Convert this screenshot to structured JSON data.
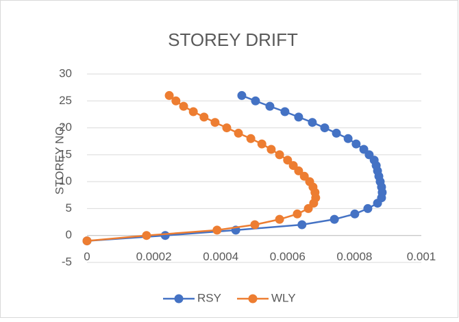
{
  "chart_data": {
    "type": "scatter",
    "title": "STOREY DRIFT",
    "ylabel": "STOREY NO.",
    "xlim": [
      0,
      0.001
    ],
    "xticks": [
      0,
      0.0002,
      0.0004,
      0.0006,
      0.0008,
      0.001
    ],
    "ylim": [
      -5,
      30
    ],
    "yticks": [
      -5,
      0,
      5,
      10,
      15,
      20,
      25,
      30
    ],
    "grid": true,
    "legend": "bottom",
    "series": [
      {
        "name": "RSY",
        "color": "#4472c4",
        "x": [
          0,
          0.000234,
          0.000445,
          0.000643,
          0.00074,
          0.000801,
          0.00084,
          0.000869,
          0.000881,
          0.000883,
          0.000881,
          0.000877,
          0.000873,
          0.000869,
          0.000865,
          0.000859,
          0.000844,
          0.000828,
          0.000805,
          0.000781,
          0.000746,
          0.000711,
          0.000674,
          0.000633,
          0.000592,
          0.000547,
          0.000504,
          0.000463
        ],
        "values": [
          -1,
          0,
          1,
          2,
          3,
          4,
          5,
          6,
          7,
          8,
          9,
          10,
          11,
          12,
          13,
          14,
          15,
          16,
          17,
          18,
          19,
          20,
          21,
          22,
          23,
          24,
          25,
          26
        ]
      },
      {
        "name": "WLY",
        "color": "#ed7d31",
        "x": [
          0,
          0.000178,
          0.000389,
          0.000502,
          0.000576,
          0.000629,
          0.000662,
          0.000678,
          0.000684,
          0.000682,
          0.000676,
          0.000666,
          0.00065,
          0.000633,
          0.000617,
          0.0006,
          0.000576,
          0.000551,
          0.000523,
          0.00049,
          0.000453,
          0.000418,
          0.000383,
          0.00035,
          0.000318,
          0.000289,
          0.000266,
          0.000246
        ],
        "values": [
          -1,
          0,
          1,
          2,
          3,
          4,
          5,
          6,
          7,
          8,
          9,
          10,
          11,
          12,
          13,
          14,
          15,
          16,
          17,
          18,
          19,
          20,
          21,
          22,
          23,
          24,
          25,
          26
        ]
      }
    ]
  }
}
